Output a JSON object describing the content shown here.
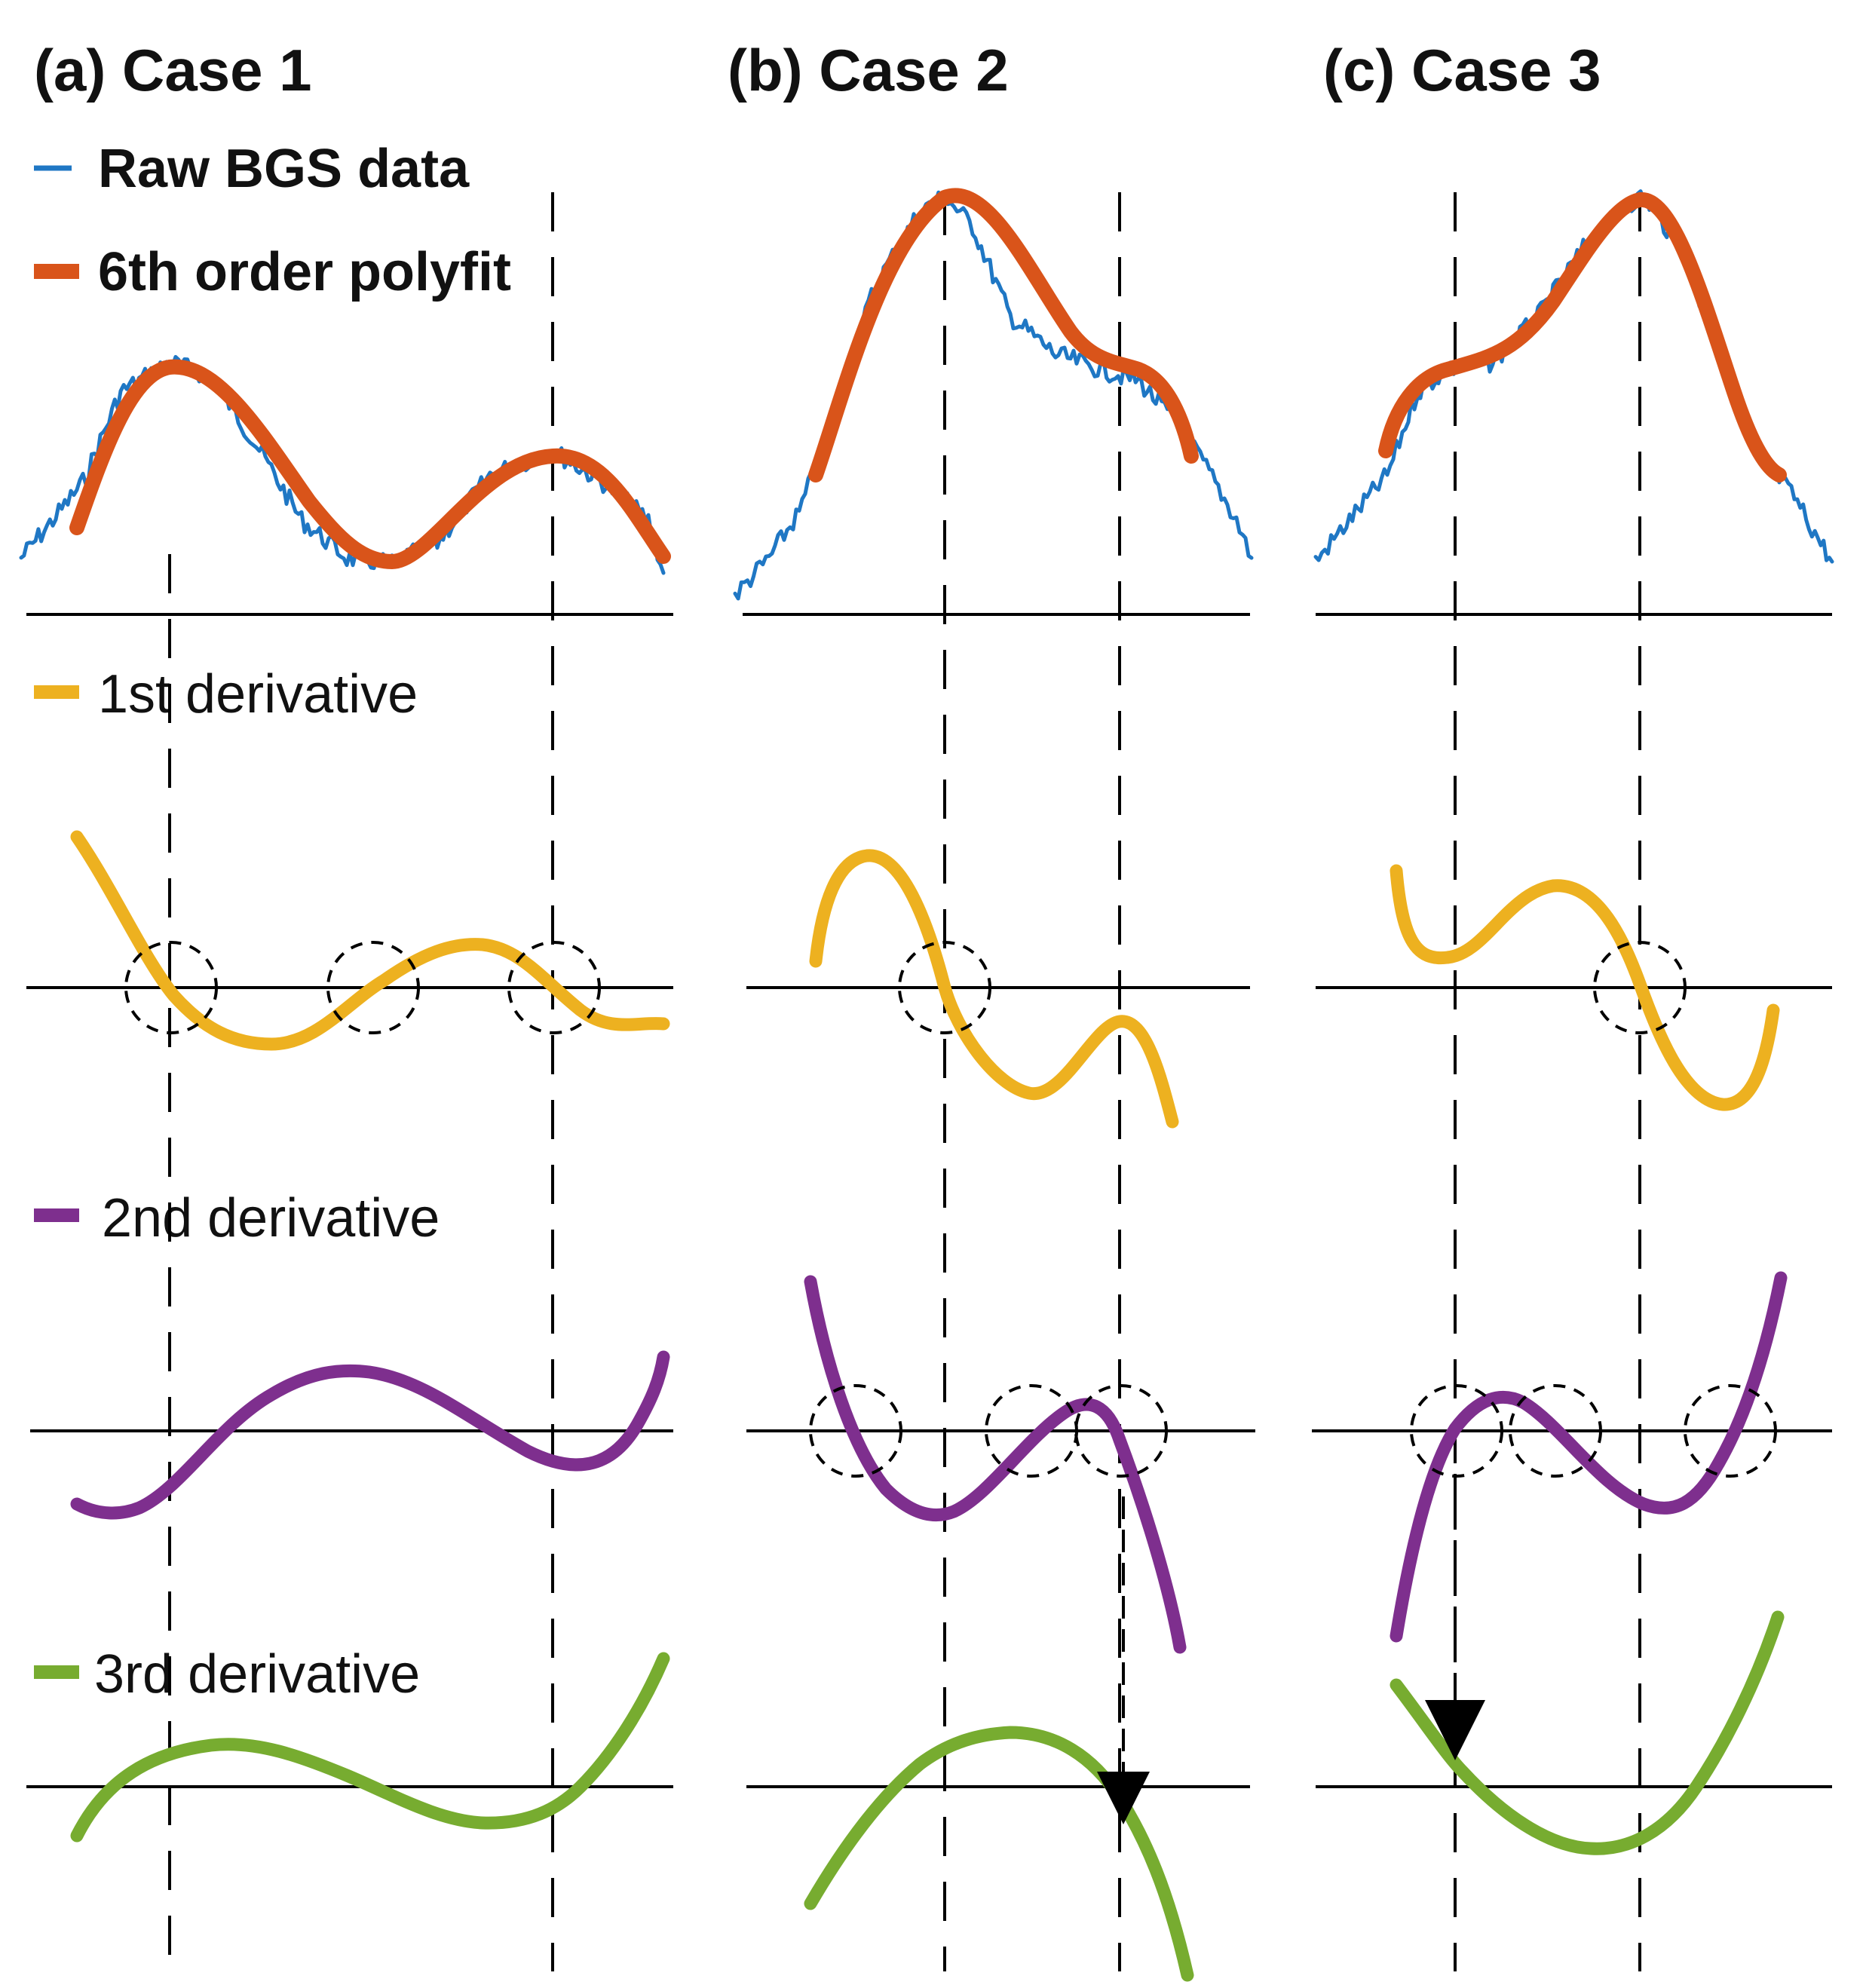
{
  "panels": [
    {
      "label": "(a) Case 1"
    },
    {
      "label": "(b) Case 2"
    },
    {
      "label": "(c) Case 3"
    }
  ],
  "legend": {
    "raw": "Raw BGS data",
    "poly": "6th order polyfit",
    "d1": "1st derivative",
    "d2": "2nd derivative",
    "d3": "3rd derivative"
  },
  "colors": {
    "raw": "#1f77c4",
    "poly": "#d9541a",
    "d1": "#edb120",
    "d2": "#7e2f8e",
    "d3": "#77ac30"
  }
}
